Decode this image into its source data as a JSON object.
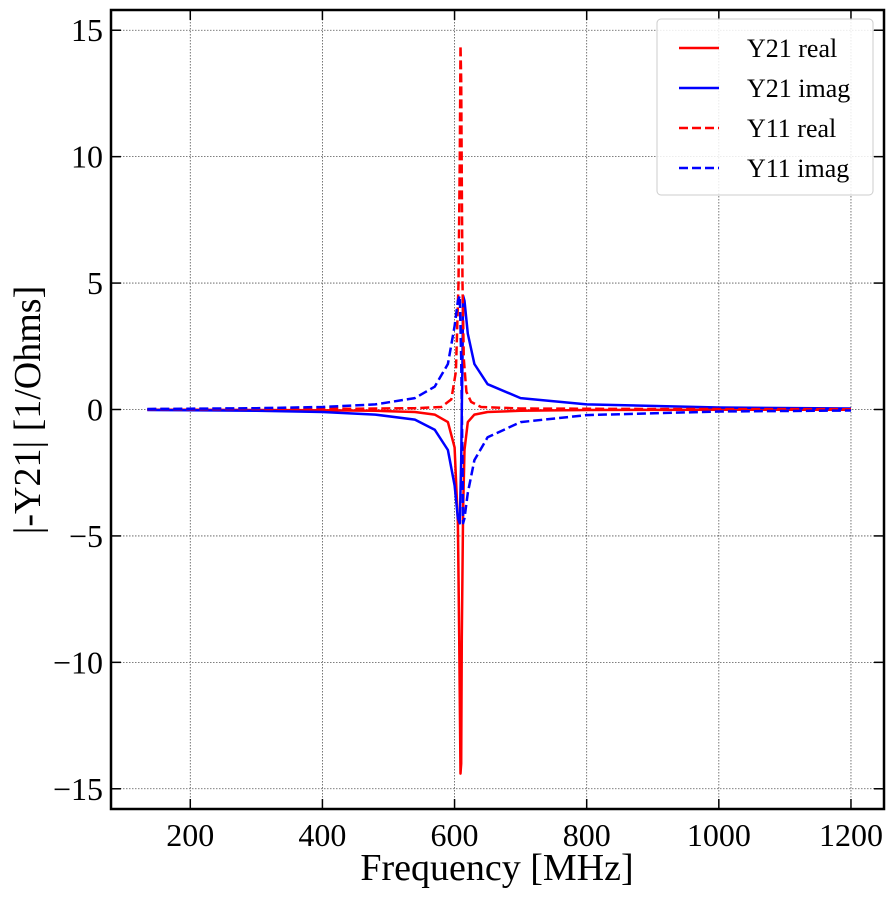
{
  "chart_data": {
    "type": "line",
    "title": "",
    "xlabel": "Frequency [MHz]",
    "ylabel": "|-Y21| [1/Ohms]",
    "xlim": [
      80,
      1250
    ],
    "ylim": [
      -15.8,
      15.8
    ],
    "xticks": [
      200,
      400,
      600,
      800,
      1000,
      1200
    ],
    "xtick_labels": [
      "200",
      "400",
      "600",
      "800",
      "1000",
      "1200"
    ],
    "yticks": [
      15,
      10,
      5,
      0,
      -5,
      -10,
      -15
    ],
    "ytick_labels": [
      "15",
      "10",
      "5",
      "0",
      "−5",
      "−10",
      "−15"
    ],
    "grid": true,
    "legend_position": "top-right",
    "series": [
      {
        "name": "Y21 real",
        "color": "#ff0000",
        "dash": "solid",
        "x": [
          135,
          200,
          300,
          400,
          480,
          540,
          570,
          590,
          600,
          605,
          607,
          609,
          610,
          611,
          613,
          615,
          620,
          630,
          650,
          700,
          800,
          1000,
          1200
        ],
        "y": [
          -0.01,
          -0.01,
          -0.02,
          -0.03,
          -0.05,
          -0.1,
          -0.2,
          -0.5,
          -1.5,
          -4.5,
          -9.0,
          -14.4,
          -14.0,
          -9.0,
          -4.0,
          -1.6,
          -0.5,
          -0.2,
          -0.1,
          -0.05,
          -0.02,
          -0.01,
          -0.01
        ]
      },
      {
        "name": "Y21 imag",
        "color": "#0000ff",
        "dash": "solid",
        "x": [
          135,
          200,
          300,
          400,
          480,
          540,
          570,
          590,
          600,
          605,
          608,
          610,
          611,
          612,
          613,
          615,
          620,
          630,
          650,
          700,
          800,
          1000,
          1200
        ],
        "y": [
          -0.02,
          -0.03,
          -0.05,
          -0.1,
          -0.2,
          -0.4,
          -0.8,
          -1.6,
          -3.0,
          -4.3,
          -4.5,
          -2.0,
          0.0,
          2.0,
          4.5,
          4.3,
          3.0,
          1.8,
          1.0,
          0.45,
          0.2,
          0.08,
          0.04
        ]
      },
      {
        "name": "Y11 real",
        "color": "#ff0000",
        "dash": "dashed",
        "x": [
          135,
          300,
          450,
          540,
          580,
          595,
          602,
          606,
          608,
          609,
          610,
          611,
          612,
          614,
          618,
          625,
          640,
          700,
          900,
          1200
        ],
        "y": [
          0.01,
          0.02,
          0.03,
          0.05,
          0.1,
          0.4,
          1.5,
          5.0,
          10.0,
          14.4,
          13.0,
          9.0,
          5.0,
          2.0,
          0.7,
          0.3,
          0.1,
          0.04,
          0.02,
          0.01
        ]
      },
      {
        "name": "Y11 imag",
        "color": "#0000ff",
        "dash": "dashed",
        "x": [
          135,
          200,
          300,
          400,
          480,
          540,
          570,
          590,
          600,
          605,
          608,
          610,
          611,
          612,
          613,
          615,
          620,
          630,
          650,
          700,
          800,
          1000,
          1200
        ],
        "y": [
          0.02,
          0.03,
          0.05,
          0.1,
          0.2,
          0.45,
          0.9,
          1.8,
          3.3,
          4.3,
          4.5,
          2.0,
          0.0,
          -2.0,
          -4.5,
          -4.3,
          -3.3,
          -2.0,
          -1.1,
          -0.5,
          -0.22,
          -0.08,
          -0.04
        ]
      }
    ]
  }
}
